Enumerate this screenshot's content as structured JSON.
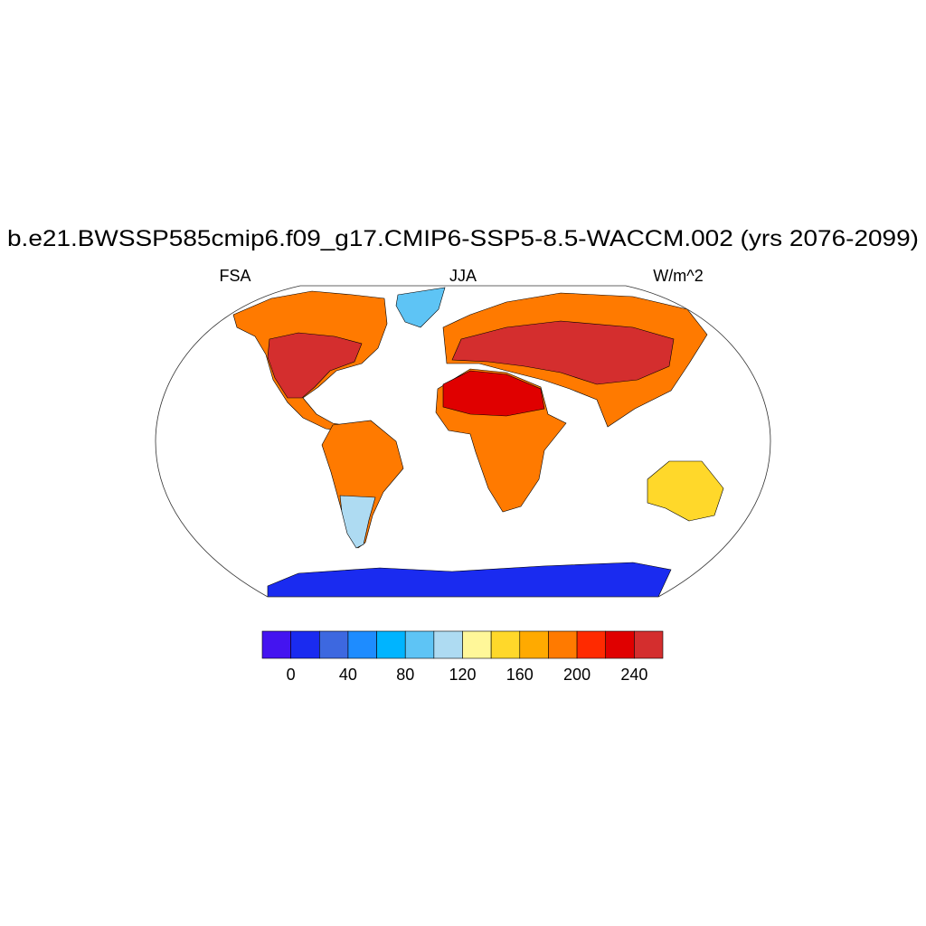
{
  "title": "b.e21.BWSSP585cmip6.f09_g17.CMIP6-SSP5-8.5-WACCM.002 (yrs 2076-2099)",
  "left_label": "FSA",
  "center_label": "JJA",
  "right_label": "W/m^2",
  "map": {
    "projection": "robinson",
    "variable": "FSA",
    "units": "W/m^2",
    "regions": [
      {
        "name": "north-america",
        "level": "orange"
      },
      {
        "name": "north-america-core",
        "level": "darkred"
      },
      {
        "name": "greenland",
        "level": "lightblue"
      },
      {
        "name": "south-america",
        "level": "orange"
      },
      {
        "name": "south-america-south",
        "level": "paleblue"
      },
      {
        "name": "africa",
        "level": "orange"
      },
      {
        "name": "africa-north",
        "level": "red"
      },
      {
        "name": "eurasia",
        "level": "orange"
      },
      {
        "name": "eurasia-core",
        "level": "darkred"
      },
      {
        "name": "australia",
        "level": "gold"
      },
      {
        "name": "antarctica",
        "level": "blue"
      }
    ],
    "palette": {
      "darkred": "#D42E2E",
      "red": "#E00000",
      "orangered": "#FF2A00",
      "orange": "#FF7A00",
      "amber": "#FFAA00",
      "gold": "#FFD82A",
      "paleyellow": "#FFF799",
      "paleblue": "#AEDBF2",
      "lightblue": "#5EC4F5",
      "blue": "#1A2BF0"
    }
  },
  "colorbar": {
    "colors": [
      "#4414F0",
      "#1A2BF0",
      "#3D68E0",
      "#1E8CFF",
      "#00B4FF",
      "#5EC4F5",
      "#AEDBF2",
      "#FFF799",
      "#FFD82A",
      "#FFAA00",
      "#FF7A00",
      "#FF2A00",
      "#E00000",
      "#D42E2E"
    ],
    "boundaries": [
      0,
      20,
      40,
      60,
      80,
      100,
      120,
      140,
      160,
      180,
      200,
      220,
      240
    ],
    "labels": [
      "0",
      "40",
      "80",
      "120",
      "160",
      "200",
      "240"
    ]
  }
}
